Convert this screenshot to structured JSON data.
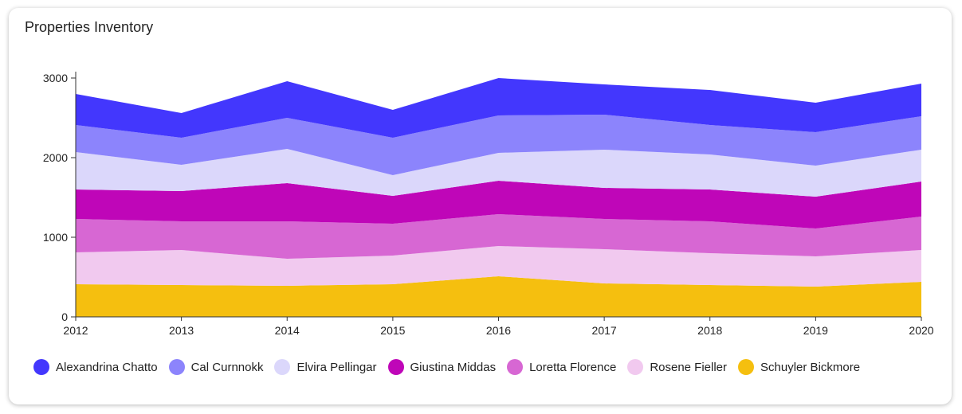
{
  "title": "Properties Inventory",
  "chart_data": {
    "type": "area",
    "stacked": true,
    "title": "Properties Inventory",
    "x": [
      "2012",
      "2013",
      "2014",
      "2015",
      "2016",
      "2017",
      "2018",
      "2019",
      "2020"
    ],
    "ylim": [
      0,
      3000
    ],
    "yticks": [
      "0",
      "1000",
      "2000",
      "3000"
    ],
    "legend_position": "bottom",
    "series": [
      {
        "name": "Schuyler Bickmore",
        "color": "#f5bf0f",
        "values": [
          410,
          400,
          390,
          410,
          510,
          420,
          400,
          380,
          440
        ]
      },
      {
        "name": "Rosene Fieller",
        "color": "#f1c9ef",
        "values": [
          400,
          440,
          340,
          360,
          380,
          430,
          400,
          380,
          400
        ]
      },
      {
        "name": "Loretta Florence",
        "color": "#d767d3",
        "values": [
          420,
          360,
          470,
          400,
          400,
          380,
          400,
          350,
          420
        ]
      },
      {
        "name": "Giustina Middas",
        "color": "#bf06b8",
        "values": [
          370,
          380,
          480,
          350,
          420,
          390,
          400,
          400,
          440
        ]
      },
      {
        "name": "Elvira Pellingar",
        "color": "#dbd7fb",
        "values": [
          470,
          330,
          430,
          260,
          350,
          480,
          440,
          390,
          400
        ]
      },
      {
        "name": "Cal Curnnokk",
        "color": "#8c84fc",
        "values": [
          340,
          340,
          390,
          470,
          470,
          440,
          370,
          420,
          420
        ]
      },
      {
        "name": "Alexandrina Chatto",
        "color": "#4337fd",
        "values": [
          390,
          310,
          460,
          350,
          470,
          380,
          440,
          370,
          410
        ]
      }
    ]
  },
  "legend": [
    {
      "label": "Alexandrina Chatto",
      "color": "#4337fd"
    },
    {
      "label": "Cal Curnnokk",
      "color": "#8c84fc"
    },
    {
      "label": "Elvira Pellingar",
      "color": "#dbd7fb"
    },
    {
      "label": "Giustina Middas",
      "color": "#bf06b8"
    },
    {
      "label": "Loretta Florence",
      "color": "#d767d3"
    },
    {
      "label": "Rosene Fieller",
      "color": "#f1c9ef"
    },
    {
      "label": "Schuyler Bickmore",
      "color": "#f5bf0f"
    }
  ]
}
